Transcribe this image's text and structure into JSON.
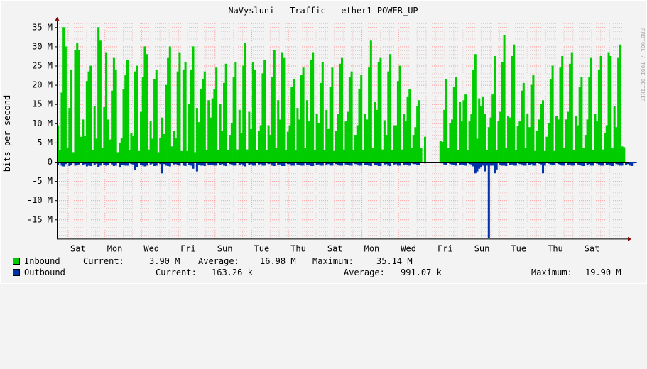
{
  "chart_data": {
    "type": "area",
    "title": "NaVysluni - Traffic - ether1-POWER_UP",
    "ylabel": "bits per second",
    "watermark": "RRDTOOL / TOBI OETIKER",
    "ylim": [
      -20000000,
      36000000
    ],
    "yticks": [
      "35 M",
      "30 M",
      "25 M",
      "20 M",
      "15 M",
      "10 M",
      "5 M",
      "0",
      "-5 M",
      "-10 M",
      "-15 M"
    ],
    "ytick_values": [
      35,
      30,
      25,
      20,
      15,
      10,
      5,
      0,
      -5,
      -10,
      -15
    ],
    "xlabels": [
      "Sat",
      "Mon",
      "Wed",
      "Fri",
      "Sun",
      "Tue",
      "Thu",
      "Sat",
      "Mon",
      "Wed",
      "Fri",
      "Sun",
      "Tue",
      "Thu",
      "Sat"
    ],
    "grid": true,
    "colors": {
      "inbound": "#00cc00",
      "outbound": "#0033aa",
      "major_grid": "#ff9a9a",
      "minor_grid": "#e6c8c8",
      "axis": "#7f0000"
    },
    "series": [
      {
        "name": "Inbound",
        "unit": "M bits per second",
        "x": "2-hour intervals",
        "gaps": [
          [
            246,
            250
          ]
        ],
        "values": [
          9.5,
          3,
          18,
          35,
          30,
          3.5,
          14,
          24,
          2.5,
          29,
          31,
          29,
          6.5,
          11,
          6.8,
          21,
          23.5,
          25,
          3,
          14.5,
          6,
          35,
          31.5,
          3.5,
          14.2,
          28.5,
          11,
          5.8,
          18.5,
          27,
          24,
          2.5,
          5,
          6.2,
          19,
          22.5,
          26.5,
          3,
          7.5,
          6.8,
          23.5,
          25,
          2.8,
          13,
          22,
          30,
          28,
          3.2,
          10.5,
          6,
          21.5,
          24,
          2.5,
          6.3,
          11.5,
          7.2,
          20,
          27,
          30,
          4,
          8,
          6.2,
          23.5,
          28.5,
          2.8,
          24,
          26,
          2.8,
          15,
          24,
          30,
          2.5,
          14,
          10.3,
          19,
          21.5,
          23.5,
          3,
          16,
          11.5,
          16.5,
          19,
          24.5,
          3,
          15,
          8,
          20.5,
          25.5,
          3,
          7,
          10,
          22,
          26,
          3.2,
          13.5,
          7.5,
          25,
          31,
          3.2,
          13,
          8.5,
          26,
          24,
          3,
          8,
          9.5,
          23,
          26.5,
          3,
          9.5,
          7,
          22,
          29,
          3.5,
          16,
          11,
          28.5,
          27,
          3,
          7.8,
          9.5,
          19.5,
          21.5,
          3,
          14,
          11,
          22.5,
          24.5,
          3.5,
          16,
          10.5,
          26.5,
          28.5,
          3,
          12.5,
          10,
          20.5,
          26,
          3,
          13.5,
          8.5,
          19.5,
          24.5,
          2.8,
          8,
          12.5,
          25.5,
          27,
          3.2,
          10.5,
          13,
          22,
          23.5,
          3,
          7,
          9.5,
          19,
          22.5,
          3,
          12.5,
          11,
          24.5,
          31.5,
          3.5,
          15.5,
          13.5,
          26,
          27,
          3.2,
          10.8,
          7,
          23.5,
          28,
          3,
          9.5,
          9.5,
          21,
          25,
          3.2,
          12.5,
          10.5,
          17,
          19,
          3.5,
          7,
          9,
          14.5,
          16,
          3.5,
          0,
          6.5,
          0,
          0,
          0,
          0,
          0,
          0,
          0,
          5.5,
          5.2,
          13.5,
          21.5,
          3.5,
          10,
          11,
          19.5,
          22,
          3,
          15.5,
          10.5,
          16,
          17.5,
          3,
          10.5,
          12.5,
          24,
          28,
          6,
          16.5,
          14.5,
          17,
          12.5,
          3,
          9,
          11.5,
          17.5,
          27.5,
          3,
          10.5,
          13,
          26,
          33,
          3.5,
          12,
          11.5,
          27.5,
          30.5,
          3,
          9.3,
          10.5,
          18.5,
          20.5,
          3.5,
          12.5,
          9,
          20,
          22.5,
          2.8,
          8,
          11,
          15,
          16,
          2.8,
          6.5,
          10,
          21.5,
          25,
          2.8,
          12,
          11,
          24.5,
          27.5,
          3.5,
          11,
          13,
          25.5,
          28.5,
          3,
          12,
          9.5,
          19.5,
          22,
          3.5,
          7,
          11,
          22,
          27,
          3,
          12.5,
          10.5,
          24,
          27.5,
          3.2,
          7.5,
          9.5,
          28.5,
          27.5,
          3.5,
          14.5,
          9,
          27,
          30.5,
          4,
          3.8
        ]
      },
      {
        "name": "Outbound",
        "unit": "M bits per second",
        "x": "2-hour intervals",
        "gaps": [
          [
            246,
            250
          ]
        ],
        "values": [
          0.9,
          0.4,
          1.0,
          1.2,
          0.6,
          0.3,
          1.1,
          0.8,
          0.4,
          1.0,
          0.9,
          0.7,
          0.3,
          0.8,
          0.6,
          1.2,
          1.0,
          1.1,
          0.4,
          0.9,
          0.5,
          1.3,
          1.0,
          0.3,
          0.9,
          1.0,
          0.8,
          0.4,
          0.7,
          1.1,
          1.0,
          0.3,
          1.5,
          0.8,
          0.9,
          1.0,
          1.0,
          0.4,
          0.6,
          0.7,
          2.2,
          1.4,
          0.4,
          0.8,
          1.0,
          1.2,
          1.0,
          0.3,
          0.7,
          0.5,
          1.1,
          1.0,
          0.3,
          0.6,
          3.0,
          0.6,
          1.0,
          1.1,
          1.2,
          0.4,
          0.7,
          0.6,
          0.9,
          1.0,
          0.3,
          1.0,
          1.1,
          0.3,
          0.8,
          1.0,
          1.8,
          0.3,
          2.5,
          0.9,
          1.0,
          1.0,
          1.1,
          0.4,
          0.9,
          0.8,
          0.9,
          1.0,
          1.0,
          0.4,
          0.8,
          0.6,
          1.0,
          1.1,
          0.3,
          0.6,
          0.7,
          1.0,
          1.0,
          0.3,
          0.9,
          0.6,
          1.0,
          1.2,
          0.4,
          0.8,
          0.6,
          1.0,
          1.0,
          0.3,
          0.7,
          0.6,
          1.0,
          1.0,
          0.3,
          0.6,
          0.5,
          1.0,
          1.1,
          0.3,
          0.8,
          0.7,
          1.1,
          1.1,
          0.3,
          0.6,
          0.6,
          1.0,
          1.0,
          0.3,
          0.9,
          0.8,
          1.0,
          1.0,
          0.4,
          0.9,
          0.8,
          1.1,
          1.1,
          0.3,
          0.8,
          0.7,
          1.0,
          1.0,
          0.3,
          0.8,
          0.6,
          1.0,
          1.0,
          0.3,
          0.6,
          0.9,
          1.0,
          1.0,
          0.3,
          0.7,
          0.9,
          1.0,
          1.0,
          0.3,
          0.6,
          0.7,
          1.0,
          1.0,
          0.3,
          0.8,
          0.8,
          1.0,
          1.1,
          0.4,
          0.9,
          0.9,
          1.1,
          1.1,
          0.3,
          0.7,
          0.6,
          1.0,
          1.1,
          0.3,
          0.7,
          0.6,
          1.0,
          1.0,
          0.3,
          0.8,
          0.7,
          0.9,
          1.0,
          0.4,
          0.6,
          0.6,
          0.8,
          0.9,
          0.3,
          0.1,
          0.4,
          0,
          0,
          0,
          0,
          0,
          0,
          0,
          0.4,
          0.4,
          0.7,
          0.9,
          0.3,
          0.6,
          0.7,
          0.9,
          1.0,
          0.3,
          0.8,
          0.7,
          0.9,
          1.0,
          0.3,
          0.6,
          0.7,
          1.2,
          3.0,
          2.5,
          1.8,
          1.5,
          1.0,
          2.5,
          1.0,
          19.9,
          1.0,
          1.0,
          3.0,
          2.0,
          0.4,
          0.9,
          1.0,
          1.0,
          1.1,
          0.3,
          0.8,
          0.7,
          1.0,
          1.0,
          0.3,
          0.6,
          0.7,
          1.0,
          1.0,
          0.3,
          0.8,
          0.6,
          1.0,
          1.0,
          0.3,
          0.5,
          0.7,
          3.0,
          1.0,
          0.3,
          0.5,
          0.7,
          0.8,
          0.9,
          0.3,
          0.6,
          0.8,
          1.0,
          1.0,
          0.3,
          0.8,
          0.7,
          1.0,
          1.0,
          0.3,
          0.7,
          0.8,
          1.0,
          1.1,
          0.3,
          0.8,
          0.6,
          1.0,
          1.0,
          0.3,
          0.5,
          0.7,
          1.0,
          1.0,
          0.3,
          0.8,
          0.7,
          1.0,
          1.1,
          0.3,
          0.6,
          0.7,
          1.0,
          1.0,
          0.3,
          0.9,
          0.6,
          1.0,
          1.1,
          0.4,
          0.3
        ]
      }
    ]
  },
  "legend": {
    "inbound": {
      "label": "Inbound",
      "current_label": "Current:",
      "current": "3.90 M",
      "average_label": "Average:",
      "average": "16.98 M",
      "maximum_label": "Maximum:",
      "maximum": "35.14 M"
    },
    "outbound": {
      "label": "Outbound",
      "current_label": "Current:",
      "current": "163.26 k",
      "average_label": "Average:",
      "average": "991.07 k",
      "maximum_label": "Maximum:",
      "maximum": "19.90 M"
    }
  }
}
